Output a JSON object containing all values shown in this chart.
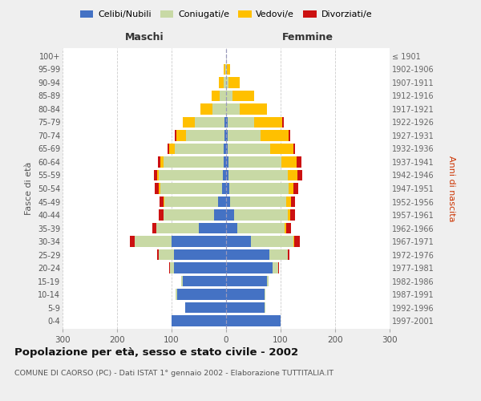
{
  "age_groups": [
    "0-4",
    "5-9",
    "10-14",
    "15-19",
    "20-24",
    "25-29",
    "30-34",
    "35-39",
    "40-44",
    "45-49",
    "50-54",
    "55-59",
    "60-64",
    "65-69",
    "70-74",
    "75-79",
    "80-84",
    "85-89",
    "90-94",
    "95-99",
    "100+"
  ],
  "birth_years": [
    "1997-2001",
    "1992-1996",
    "1987-1991",
    "1982-1986",
    "1977-1981",
    "1972-1976",
    "1967-1971",
    "1962-1966",
    "1957-1961",
    "1952-1956",
    "1947-1951",
    "1942-1946",
    "1937-1941",
    "1932-1936",
    "1927-1931",
    "1922-1926",
    "1917-1921",
    "1912-1916",
    "1907-1911",
    "1902-1906",
    "≤ 1901"
  ],
  "colors": {
    "celibi": "#4472c4",
    "coniugati": "#c8d9a5",
    "vedovi": "#ffc000",
    "divorziati": "#cc1111"
  },
  "male_celibi": [
    100,
    75,
    90,
    80,
    95,
    95,
    100,
    50,
    22,
    15,
    8,
    6,
    5,
    4,
    3,
    3,
    0,
    0,
    0,
    0,
    0
  ],
  "male_coniugati": [
    0,
    0,
    2,
    2,
    8,
    28,
    68,
    78,
    93,
    98,
    113,
    118,
    110,
    90,
    70,
    55,
    25,
    12,
    5,
    2,
    0
  ],
  "male_vedovi": [
    0,
    0,
    0,
    0,
    0,
    0,
    0,
    0,
    0,
    1,
    2,
    3,
    5,
    10,
    18,
    22,
    22,
    15,
    8,
    2,
    0
  ],
  "male_divorziati": [
    0,
    0,
    0,
    0,
    2,
    3,
    8,
    8,
    8,
    8,
    8,
    5,
    5,
    3,
    3,
    0,
    0,
    0,
    0,
    0,
    0
  ],
  "female_nubili": [
    100,
    70,
    70,
    75,
    85,
    80,
    45,
    20,
    15,
    8,
    6,
    5,
    4,
    3,
    3,
    3,
    0,
    0,
    0,
    0,
    0
  ],
  "female_coniugate": [
    0,
    2,
    2,
    3,
    10,
    33,
    78,
    88,
    98,
    103,
    108,
    108,
    98,
    78,
    60,
    48,
    25,
    12,
    5,
    2,
    0
  ],
  "female_vedove": [
    0,
    0,
    0,
    0,
    0,
    0,
    2,
    3,
    5,
    8,
    10,
    18,
    28,
    42,
    52,
    52,
    50,
    40,
    20,
    5,
    0
  ],
  "female_divorziate": [
    0,
    0,
    0,
    0,
    2,
    3,
    10,
    8,
    8,
    8,
    8,
    8,
    8,
    3,
    3,
    3,
    0,
    0,
    0,
    0,
    0
  ],
  "title": "Popolazione per età, sesso e stato civile - 2002",
  "subtitle": "COMUNE DI CAORSO (PC) - Dati ISTAT 1° gennaio 2002 - Elaborazione TUTTITALIA.IT",
  "label_maschi": "Maschi",
  "label_femmine": "Femmine",
  "ylabel_left": "Fasce di età",
  "ylabel_right": "Anni di nascita",
  "legend_labels": [
    "Celibi/Nubili",
    "Coniugati/e",
    "Vedovi/e",
    "Divorziati/e"
  ],
  "xlim": 300,
  "background_color": "#efefef",
  "plot_bg": "#ffffff"
}
